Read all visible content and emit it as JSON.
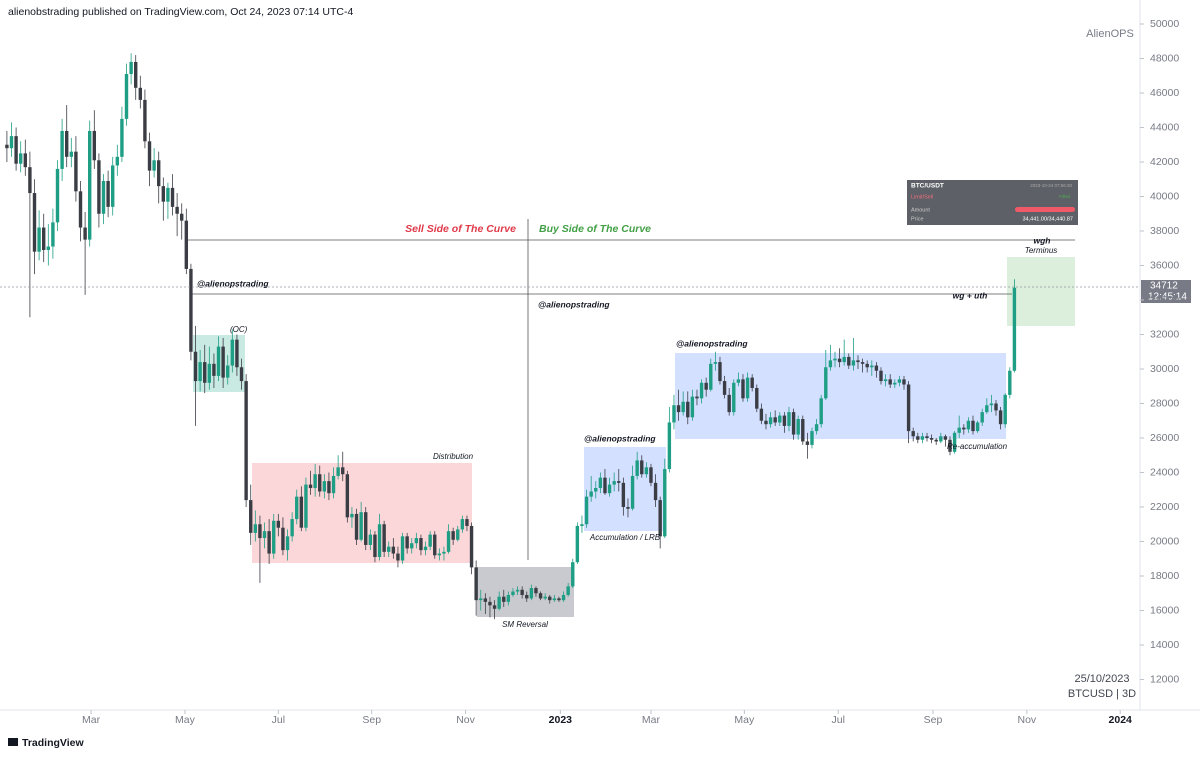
{
  "header": {
    "publisher": "alienobstrading published on TradingView.com, Oct 24, 2023 07:14 UTC-4",
    "brand": "TradingView",
    "author_mark": "AlienOPS"
  },
  "chart_data": {
    "type": "candlestick",
    "symbol": "BTCUSD | 3D",
    "date_label": "25/10/2023",
    "up_color": "#1e9e84",
    "down_color": "#3b3d45",
    "last_price": 34712,
    "countdown": "12:45:14",
    "xlim": [
      -1.5,
      246.3
    ],
    "xticks": [
      {
        "value": 18.3,
        "label": "Mar"
      },
      {
        "value": 38.7,
        "label": "May"
      },
      {
        "value": 59,
        "label": "Jul"
      },
      {
        "value": 79.3,
        "label": "Sep"
      },
      {
        "value": 99.7,
        "label": "Nov"
      },
      {
        "value": 120.3,
        "label": "2023"
      },
      {
        "value": 140,
        "label": "Mar"
      },
      {
        "value": 160.3,
        "label": "May"
      },
      {
        "value": 180.7,
        "label": "Jul"
      },
      {
        "value": 201.3,
        "label": "Sep"
      },
      {
        "value": 221.7,
        "label": "Nov"
      },
      {
        "value": 242,
        "label": "2024"
      }
    ],
    "ylim": [
      10232,
      51391
    ],
    "yticks": [
      12000,
      14000,
      16000,
      18000,
      20000,
      22000,
      24000,
      26000,
      28000,
      30000,
      32000,
      34000,
      36000,
      38000,
      40000,
      42000,
      44000,
      46000,
      48000,
      50000
    ],
    "open": [
      43000,
      42800,
      43500,
      41900,
      42500,
      41700,
      40200,
      36800,
      38200,
      36900,
      37100,
      38500,
      41600,
      43800,
      42300,
      42600,
      40300,
      38200,
      37500,
      43800,
      42100,
      39000,
      40900,
      39400,
      41800,
      42300,
      44500,
      47100,
      47800,
      46300,
      45600,
      43200,
      41500,
      42100,
      40600,
      39700,
      40500,
      39400,
      39000,
      38600,
      35800,
      31000,
      29300,
      30400,
      29200,
      30300,
      29600,
      31300,
      29500,
      30200,
      31700,
      30100,
      29300,
      22400,
      20500,
      21000,
      20200,
      20600,
      19300,
      21200,
      20800,
      19500,
      20300,
      21300,
      22600,
      20800,
      23300,
      23100,
      23900,
      22900,
      23500,
      22800,
      23800,
      24300,
      23900,
      21400,
      21600,
      20100,
      21700,
      19800,
      20400,
      19100,
      21000,
      19400,
      19700,
      19300,
      18900,
      20300,
      19600,
      19900,
      20200,
      19500,
      19700,
      20400,
      19200,
      19300,
      19400,
      20600,
      20100,
      20700,
      21300,
      20900,
      18500,
      16600,
      16700,
      16500,
      16300,
      16100,
      16800,
      16500,
      16900,
      17100,
      17200,
      16900,
      16700,
      17300,
      17000,
      16700,
      16800,
      16600,
      16700,
      16600,
      16900,
      17400,
      18800,
      20900,
      21000,
      22600,
      22900,
      23100,
      23700,
      22800,
      23300,
      23500,
      23400,
      22000,
      21900,
      23800,
      24700,
      23900,
      24300,
      23400,
      22400,
      20300,
      24200,
      26900,
      27900,
      27500,
      28100,
      27200,
      28400,
      28300,
      29200,
      28800,
      30300,
      30400,
      29300,
      28500,
      27500,
      29200,
      29400,
      28300,
      29500,
      28900,
      27700,
      27000,
      26800,
      27200,
      26900,
      27300,
      26700,
      27500,
      26200,
      27100,
      25800,
      25600,
      26400,
      26800,
      28300,
      30100,
      30500,
      30600,
      30400,
      30700,
      30200,
      30500,
      30400,
      30300,
      30100,
      30200,
      29900,
      29300,
      29400,
      29100,
      29200,
      29400,
      29100,
      26400,
      26100,
      25900,
      26100,
      26000,
      25900,
      25800,
      26100,
      25900,
      25200,
      26300,
      26600,
      26500,
      27000,
      26400,
      26900,
      27500,
      27900,
      28000,
      27600,
      26800,
      28500,
      29900
    ],
    "high": [
      43800,
      44300,
      44000,
      43200,
      43300,
      42600,
      41000,
      39200,
      39000,
      38400,
      39300,
      42100,
      44500,
      45300,
      43400,
      43500,
      40900,
      39100,
      44400,
      45000,
      42500,
      41300,
      41500,
      42300,
      43000,
      45200,
      47700,
      48300,
      48200,
      47000,
      46200,
      43700,
      42800,
      42600,
      41100,
      40800,
      41300,
      40200,
      39600,
      39300,
      36100,
      32500,
      31100,
      31400,
      31300,
      30900,
      31900,
      31800,
      30800,
      32300,
      32000,
      30600,
      29700,
      23300,
      21800,
      21500,
      21100,
      21300,
      21600,
      21600,
      21400,
      20700,
      21700,
      23000,
      23200,
      23700,
      24100,
      24500,
      24400,
      23900,
      24000,
      24300,
      25000,
      25200,
      24100,
      22000,
      21900,
      22300,
      22000,
      20700,
      20600,
      21600,
      21200,
      20000,
      20200,
      19700,
      20500,
      20500,
      20200,
      20500,
      20400,
      20000,
      20600,
      20600,
      19600,
      19700,
      21000,
      20800,
      20900,
      21500,
      21500,
      21100,
      18900,
      17200,
      17000,
      16800,
      16600,
      17100,
      17200,
      17100,
      17300,
      17400,
      17400,
      17100,
      17500,
      17400,
      17100,
      17000,
      16900,
      16900,
      16800,
      17100,
      17600,
      19000,
      21100,
      21500,
      23000,
      23800,
      23500,
      24000,
      24200,
      23700,
      24000,
      24200,
      23700,
      22500,
      24400,
      25200,
      25000,
      24600,
      24500,
      23900,
      22600,
      24800,
      27800,
      28500,
      28800,
      28700,
      28700,
      28800,
      28800,
      29400,
      29500,
      30600,
      31000,
      30700,
      29600,
      28900,
      29400,
      29800,
      29700,
      29800,
      29700,
      29100,
      28000,
      27400,
      27500,
      27600,
      27500,
      27500,
      27800,
      27700,
      27300,
      27300,
      26300,
      26600,
      27100,
      28500,
      31100,
      31400,
      31000,
      31200,
      31700,
      30900,
      31800,
      30800,
      30600,
      30500,
      30500,
      30400,
      30100,
      29700,
      29700,
      29400,
      29600,
      29600,
      29300,
      26600,
      26300,
      26300,
      26300,
      26200,
      26000,
      26300,
      26200,
      26100,
      26400,
      27300,
      26800,
      27200,
      27300,
      27000,
      27700,
      28300,
      28500,
      28200,
      27800,
      28600,
      30100,
      35200
    ],
    "low": [
      42000,
      42300,
      41500,
      41400,
      41200,
      33000,
      35500,
      36300,
      36200,
      36000,
      36400,
      38000,
      40900,
      41700,
      41700,
      39700,
      37400,
      34300,
      37100,
      41600,
      38200,
      38400,
      38800,
      38900,
      41200,
      42000,
      44100,
      46500,
      45600,
      45100,
      42800,
      40600,
      41100,
      39600,
      38600,
      38700,
      38900,
      37700,
      37500,
      35500,
      30500,
      26700,
      28700,
      28600,
      28800,
      28900,
      29300,
      28900,
      29100,
      29800,
      29600,
      28800,
      22000,
      19800,
      20000,
      17600,
      19600,
      18700,
      19000,
      20300,
      19200,
      18900,
      20000,
      21000,
      20600,
      20600,
      22700,
      22600,
      22600,
      22500,
      22400,
      22500,
      23600,
      23500,
      21100,
      20800,
      19800,
      20000,
      19500,
      19500,
      18800,
      18900,
      19100,
      19100,
      19000,
      18500,
      18700,
      19300,
      19300,
      19600,
      19200,
      19200,
      19500,
      19000,
      18900,
      18900,
      19300,
      19800,
      20000,
      20500,
      20600,
      18100,
      15700,
      16000,
      15800,
      15600,
      15500,
      16000,
      16200,
      16300,
      16800,
      16900,
      16700,
      16500,
      16600,
      16800,
      16600,
      16600,
      16400,
      16500,
      16500,
      16500,
      16800,
      17300,
      18700,
      20500,
      20800,
      22300,
      22500,
      22800,
      22700,
      22600,
      22900,
      22900,
      21500,
      21400,
      21800,
      23600,
      23700,
      23700,
      23200,
      22000,
      19600,
      20200,
      24000,
      26500,
      27000,
      27300,
      26800,
      27000,
      27900,
      28000,
      28400,
      28700,
      29900,
      29100,
      28300,
      27300,
      27300,
      29000,
      28100,
      28100,
      28700,
      27500,
      26800,
      26500,
      26600,
      26700,
      26700,
      26300,
      26400,
      25900,
      25900,
      25600,
      24800,
      25400,
      26200,
      26600,
      28200,
      29900,
      30100,
      30100,
      30200,
      30000,
      29900,
      30000,
      29800,
      29800,
      29600,
      29500,
      29100,
      29000,
      28900,
      28900,
      29000,
      28800,
      25700,
      25800,
      25700,
      25700,
      25800,
      25700,
      25600,
      25700,
      25500,
      25000,
      25100,
      26000,
      26200,
      26300,
      26200,
      26300,
      26700,
      27400,
      27500,
      27300,
      26500,
      26600,
      28300,
      29800
    ],
    "close": [
      42800,
      43500,
      41900,
      42500,
      41700,
      40200,
      36800,
      38200,
      36900,
      37100,
      38500,
      41600,
      43800,
      42300,
      42600,
      40300,
      38200,
      37500,
      43800,
      42100,
      39000,
      40900,
      39400,
      41800,
      42300,
      44500,
      47100,
      47800,
      46300,
      45600,
      43200,
      41500,
      42100,
      40600,
      39700,
      40500,
      39400,
      39000,
      38600,
      35800,
      31000,
      29300,
      30400,
      29200,
      30300,
      29600,
      31300,
      29500,
      30200,
      31700,
      30100,
      29300,
      22400,
      20500,
      21000,
      20200,
      20600,
      19300,
      21200,
      20800,
      19500,
      20300,
      21300,
      22600,
      20800,
      23300,
      23100,
      23900,
      22900,
      23500,
      22800,
      23800,
      24300,
      23900,
      21400,
      21600,
      20100,
      21700,
      19800,
      20400,
      19100,
      21000,
      19400,
      19700,
      19300,
      18900,
      20300,
      19600,
      19900,
      20200,
      19500,
      19700,
      20400,
      19200,
      19300,
      19400,
      20600,
      20100,
      20700,
      21300,
      20900,
      18500,
      16600,
      16700,
      16500,
      16300,
      16100,
      16800,
      16500,
      16900,
      17100,
      17200,
      16900,
      16700,
      17300,
      17000,
      16700,
      16800,
      16600,
      16700,
      16600,
      16900,
      17400,
      18800,
      20900,
      21000,
      22600,
      22900,
      23100,
      23700,
      22800,
      23300,
      23500,
      23400,
      22000,
      21900,
      23800,
      24700,
      23900,
      24300,
      23400,
      22400,
      20300,
      24200,
      26900,
      27900,
      27500,
      28100,
      27200,
      28400,
      28300,
      29200,
      28800,
      30300,
      30400,
      29300,
      28500,
      27500,
      29200,
      29400,
      28300,
      29500,
      28900,
      27700,
      27000,
      26800,
      27200,
      26900,
      27300,
      26700,
      27500,
      26200,
      27100,
      25800,
      25600,
      26400,
      26800,
      28300,
      30100,
      30500,
      30600,
      30400,
      30700,
      30200,
      30500,
      30400,
      30300,
      30100,
      30200,
      29900,
      29300,
      29400,
      29100,
      29200,
      29400,
      29100,
      26400,
      26100,
      25900,
      26100,
      26000,
      25900,
      25800,
      26100,
      25900,
      25200,
      26300,
      26600,
      26500,
      27000,
      26400,
      26900,
      27500,
      27900,
      28000,
      27600,
      26800,
      28500,
      29900,
      34712
    ],
    "annotations": {
      "sell_side": "Sell Side of The Curve",
      "buy_side": "Buy Side of The Curve",
      "tag1": "@alienopstrading",
      "tag2": "@alienopstrading",
      "tag3": "@alienopstrading",
      "tag4": "@alienopstrading",
      "oc": "(OC)",
      "distribution": "Distribution",
      "sm_reversal": "SM Reversal",
      "accumulation": "Accumulation / LRB",
      "reaccumulation": "Re-accumulation",
      "wgh": "wgh",
      "terminus": "Terminus",
      "wg_uth": "wg + uth"
    },
    "order_widget": {
      "pair": "BTC/USDT",
      "time": "2023-10-24 07:56:30",
      "side": "Limit/Sell",
      "status": "Filled",
      "amount_label": "Amount",
      "price_label": "Price",
      "price": "34,441.00/34,440.87"
    }
  }
}
